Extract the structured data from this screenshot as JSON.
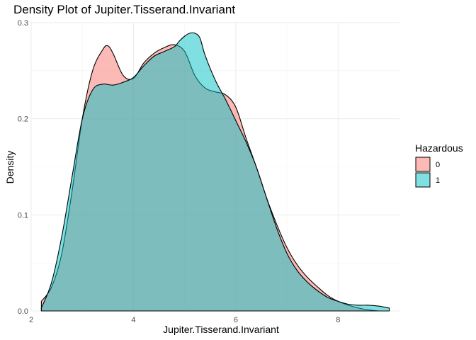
{
  "chart_data": {
    "type": "area",
    "title": "Density Plot of Jupiter.Tisserand.Invariant",
    "xlabel": "Jupiter.Tisserand.Invariant",
    "ylabel": "Density",
    "xlim": [
      2.0,
      9.2
    ],
    "ylim": [
      0.0,
      0.3
    ],
    "xticks": [
      2,
      4,
      6,
      8
    ],
    "yticks": [
      0.0,
      0.1,
      0.2,
      0.3
    ],
    "xtick_labels": [
      "2",
      "4",
      "6",
      "8"
    ],
    "ytick_labels": [
      "0.0",
      "0.1",
      "0.2",
      "0.3"
    ],
    "grid": true,
    "legend": {
      "title": "Hazardous",
      "position": "right"
    },
    "series": [
      {
        "name": "0",
        "color": "#F8766D",
        "x": [
          2.2,
          2.4,
          2.6,
          2.8,
          3.0,
          3.2,
          3.4,
          3.5,
          3.6,
          3.8,
          4.0,
          4.2,
          4.4,
          4.6,
          4.8,
          5.0,
          5.2,
          5.4,
          5.6,
          5.8,
          6.0,
          6.2,
          6.4,
          6.6,
          6.8,
          7.0,
          7.2,
          7.4,
          7.6,
          7.8,
          8.0,
          8.2,
          8.4,
          8.6,
          8.8
        ],
        "values": [
          0.01,
          0.025,
          0.06,
          0.125,
          0.2,
          0.25,
          0.272,
          0.276,
          0.268,
          0.245,
          0.242,
          0.258,
          0.268,
          0.274,
          0.277,
          0.27,
          0.245,
          0.232,
          0.228,
          0.225,
          0.212,
          0.18,
          0.15,
          0.118,
          0.09,
          0.066,
          0.048,
          0.035,
          0.025,
          0.016,
          0.01,
          0.006,
          0.003,
          0.001,
          0.0
        ]
      },
      {
        "name": "1",
        "color": "#00BFC4",
        "x": [
          2.2,
          2.4,
          2.6,
          2.8,
          3.0,
          3.2,
          3.4,
          3.6,
          3.8,
          4.0,
          4.2,
          4.4,
          4.6,
          4.8,
          4.9,
          5.0,
          5.1,
          5.2,
          5.3,
          5.4,
          5.6,
          5.8,
          6.0,
          6.2,
          6.4,
          6.6,
          6.8,
          7.0,
          7.2,
          7.4,
          7.6,
          7.8,
          8.0,
          8.2,
          8.4,
          8.6,
          8.8,
          9.0
        ],
        "values": [
          0.003,
          0.03,
          0.078,
          0.14,
          0.2,
          0.23,
          0.236,
          0.235,
          0.238,
          0.243,
          0.255,
          0.265,
          0.27,
          0.275,
          0.281,
          0.286,
          0.289,
          0.289,
          0.284,
          0.266,
          0.24,
          0.22,
          0.198,
          0.176,
          0.15,
          0.118,
          0.086,
          0.06,
          0.042,
          0.03,
          0.021,
          0.014,
          0.01,
          0.007,
          0.006,
          0.006,
          0.005,
          0.003
        ]
      }
    ]
  }
}
